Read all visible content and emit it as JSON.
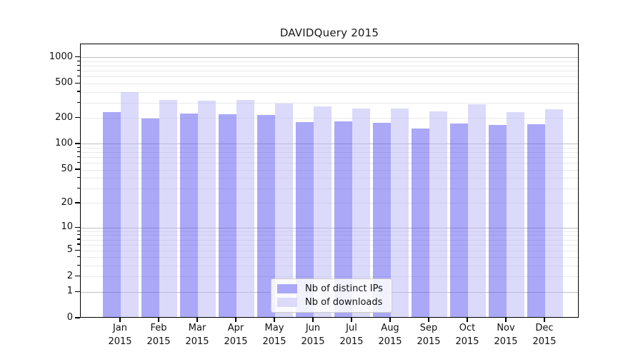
{
  "chart_data": {
    "type": "bar",
    "title": "DAVIDQuery 2015",
    "categories": [
      "Jan 2015",
      "Feb 2015",
      "Mar 2015",
      "Apr 2015",
      "May 2015",
      "Jun 2015",
      "Jul 2015",
      "Aug 2015",
      "Sep 2015",
      "Oct 2015",
      "Nov 2015",
      "Dec 2015"
    ],
    "series": [
      {
        "name": "Nb of distinct IPs",
        "fill": "rgba(85,81,239,0.5)",
        "legend_color": "#aaa8f7",
        "values": [
          225,
          192,
          220,
          214,
          209,
          175,
          176,
          171,
          146,
          168,
          162,
          164
        ]
      },
      {
        "name": "Nb of downloads",
        "fill": "rgba(183,181,247,0.5)",
        "legend_color": "#dbdaf9",
        "values": [
          382,
          315,
          308,
          314,
          284,
          264,
          247,
          250,
          230,
          281,
          226,
          244
        ]
      }
    ],
    "xlabel": "",
    "ylabel": "",
    "yscale": "log1p",
    "yticks": [
      0,
      1,
      2,
      5,
      10,
      20,
      50,
      100,
      200,
      500,
      1000
    ],
    "ylim": [
      0,
      1423
    ],
    "grid": true,
    "legend_position": "lower center",
    "spine_color": "#000000",
    "major_grid_color": "#c0c0c0",
    "minor_grid_color": "#e9e9e9"
  }
}
